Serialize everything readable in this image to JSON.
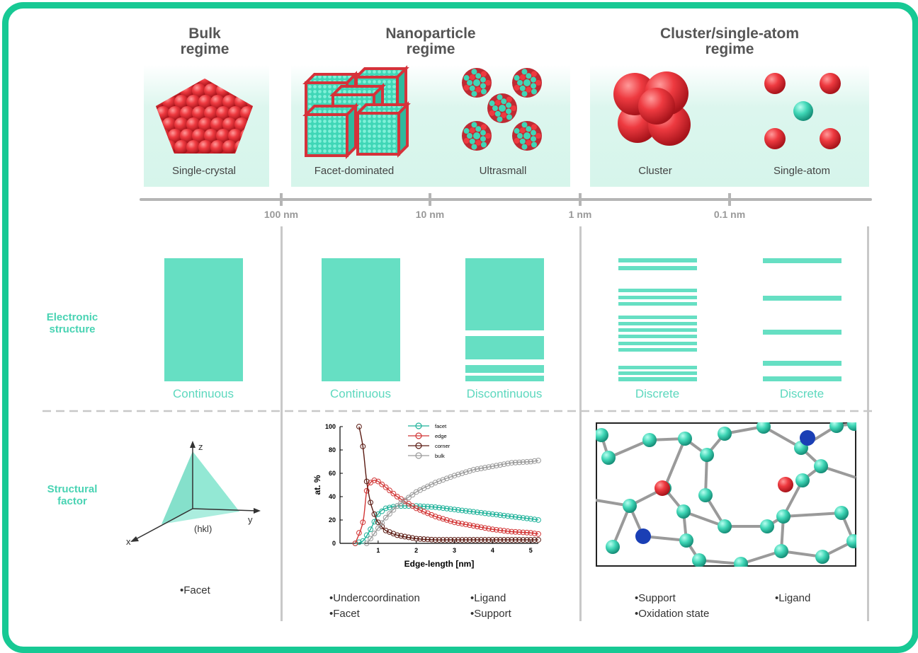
{
  "regimes": {
    "bulk": "Bulk\nregime",
    "nano": "Nanoparticle\nregime",
    "cluster": "Cluster/single-atom\nregime"
  },
  "captions": {
    "single_crystal": "Single-crystal",
    "facet_dominated": "Facet-dominated",
    "ultrasmall": "Ultrasmall",
    "cluster": "Cluster",
    "single_atom": "Single-atom"
  },
  "scale": [
    "100 nm",
    "10 nm",
    "1 nm",
    "0.1 nm"
  ],
  "rows": {
    "electronic": "Electronic\nstructure",
    "structural": "Structural\nfactor"
  },
  "band_labels": [
    "Continuous",
    "Continuous",
    "Discontinuous",
    "Discrete",
    "Discrete"
  ],
  "axes3d": {
    "x": "x",
    "y": "y",
    "z": "z",
    "plane": "(hkl)"
  },
  "bullets": {
    "bulk": [
      "Facet"
    ],
    "nano_left": [
      "Undercoordination",
      "Facet"
    ],
    "nano_right": [
      "Ligand",
      "Support"
    ],
    "cluster_left": [
      "Support",
      "Oxidation state"
    ],
    "cluster_right": [
      "Ligand"
    ]
  },
  "colors": {
    "teal": "#66dfc3",
    "frame": "#17c994",
    "red": "#e8333b",
    "blue": "#1a3fb5"
  },
  "chart_data": {
    "type": "line",
    "title": "",
    "xlabel": "Edge-length [nm]",
    "ylabel": "at. %",
    "xlim": [
      0,
      5.2
    ],
    "ylim": [
      0,
      100
    ],
    "xticks": [
      1,
      2,
      3,
      4,
      5
    ],
    "yticks": [
      0,
      20,
      40,
      60,
      80,
      100
    ],
    "legend_position": "top-right",
    "series": [
      {
        "name": "facet",
        "color": "#1fb29a",
        "x": [
          0.4,
          0.6,
          0.8,
          1.0,
          1.2,
          1.5,
          2.0,
          2.5,
          3.0,
          3.5,
          4.0,
          4.5,
          5.0,
          5.2
        ],
        "values": [
          0,
          2,
          12,
          25,
          30,
          32,
          32,
          31,
          29,
          27,
          25,
          23,
          21,
          20
        ]
      },
      {
        "name": "edge",
        "color": "#d23535",
        "x": [
          0.4,
          0.6,
          0.7,
          0.8,
          0.9,
          1.0,
          1.2,
          1.5,
          2.0,
          2.5,
          3.0,
          3.5,
          4.0,
          4.5,
          5.0,
          5.2
        ],
        "values": [
          0,
          18,
          45,
          52,
          54,
          53,
          48,
          40,
          30,
          23,
          18,
          15,
          12,
          10,
          9,
          8
        ]
      },
      {
        "name": "corner",
        "color": "#5a1a12",
        "x": [
          0.5,
          0.6,
          0.7,
          0.8,
          0.9,
          1.0,
          1.2,
          1.5,
          2.0,
          2.5,
          3.0,
          3.5,
          4.0,
          4.5,
          5.0,
          5.2
        ],
        "values": [
          100,
          83,
          53,
          35,
          25,
          18,
          11,
          7,
          4,
          3,
          3,
          3,
          3,
          3,
          3,
          3
        ]
      },
      {
        "name": "bulk",
        "color": "#9a9a9a",
        "x": [
          0.7,
          0.8,
          1.0,
          1.2,
          1.5,
          2.0,
          2.5,
          3.0,
          3.5,
          4.0,
          4.5,
          5.0,
          5.2
        ],
        "values": [
          0,
          4,
          13,
          22,
          32,
          44,
          52,
          58,
          63,
          66,
          69,
          70,
          71
        ]
      }
    ]
  }
}
